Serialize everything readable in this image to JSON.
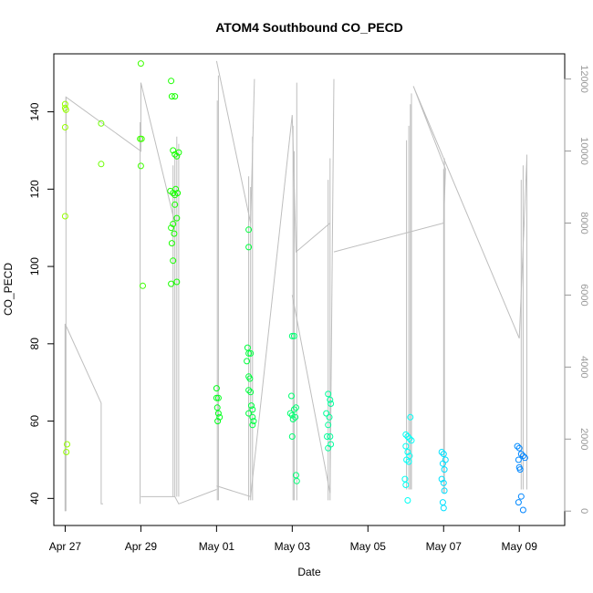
{
  "chart_data": {
    "type": "scatter",
    "title": "ATOM4 Southbound CO_PECD",
    "xlabel": "Date",
    "ylabel": "CO_PECD",
    "xlim": [
      -0.3,
      13.2
    ],
    "ylim": [
      33,
      155
    ],
    "xticks": [
      {
        "value": 0,
        "label": "Apr 27"
      },
      {
        "value": 2,
        "label": "Apr 29"
      },
      {
        "value": 4,
        "label": "May 01"
      },
      {
        "value": 6,
        "label": "May 03"
      },
      {
        "value": 8,
        "label": "May 05"
      },
      {
        "value": 10,
        "label": "May 07"
      },
      {
        "value": 12,
        "label": "May 09"
      }
    ],
    "yticks": [
      40,
      60,
      80,
      100,
      120,
      140
    ],
    "y2lim": [
      -400,
      12700
    ],
    "y2ticks": [
      0,
      2000,
      4000,
      6000,
      8000,
      10000,
      12000
    ],
    "grid": false,
    "points": [
      {
        "x": 0.0,
        "y": 142.0
      },
      {
        "x": 0.0,
        "y": 141.0
      },
      {
        "x": 0.02,
        "y": 140.5
      },
      {
        "x": 0.0,
        "y": 136.0
      },
      {
        "x": 0.0,
        "y": 113.0
      },
      {
        "x": 0.05,
        "y": 54.0
      },
      {
        "x": 0.03,
        "y": 52.0
      },
      {
        "x": 0.95,
        "y": 137.0
      },
      {
        "x": 0.95,
        "y": 126.5
      },
      {
        "x": 2.0,
        "y": 152.5
      },
      {
        "x": 1.98,
        "y": 133.0
      },
      {
        "x": 2.02,
        "y": 133.0
      },
      {
        "x": 2.0,
        "y": 126.0
      },
      {
        "x": 2.05,
        "y": 95.0
      },
      {
        "x": 2.8,
        "y": 148.0
      },
      {
        "x": 2.82,
        "y": 144.0
      },
      {
        "x": 2.9,
        "y": 144.0
      },
      {
        "x": 2.85,
        "y": 130.0
      },
      {
        "x": 2.9,
        "y": 129.0
      },
      {
        "x": 2.95,
        "y": 128.5
      },
      {
        "x": 3.0,
        "y": 129.5
      },
      {
        "x": 2.78,
        "y": 119.5
      },
      {
        "x": 2.85,
        "y": 119.0
      },
      {
        "x": 2.9,
        "y": 118.5
      },
      {
        "x": 2.92,
        "y": 120.0
      },
      {
        "x": 2.97,
        "y": 119.0
      },
      {
        "x": 2.9,
        "y": 116.0
      },
      {
        "x": 2.95,
        "y": 112.5
      },
      {
        "x": 2.85,
        "y": 111.0
      },
      {
        "x": 2.8,
        "y": 110.0
      },
      {
        "x": 2.88,
        "y": 108.5
      },
      {
        "x": 2.82,
        "y": 106.0
      },
      {
        "x": 2.85,
        "y": 101.5
      },
      {
        "x": 2.8,
        "y": 95.5
      },
      {
        "x": 2.95,
        "y": 96.0
      },
      {
        "x": 4.0,
        "y": 68.5
      },
      {
        "x": 4.0,
        "y": 66.0
      },
      {
        "x": 4.05,
        "y": 66.0
      },
      {
        "x": 4.02,
        "y": 63.5
      },
      {
        "x": 4.05,
        "y": 62.0
      },
      {
        "x": 4.08,
        "y": 61.0
      },
      {
        "x": 4.03,
        "y": 60.0
      },
      {
        "x": 4.85,
        "y": 109.5
      },
      {
        "x": 4.85,
        "y": 105.0
      },
      {
        "x": 4.82,
        "y": 79.0
      },
      {
        "x": 4.85,
        "y": 77.5
      },
      {
        "x": 4.9,
        "y": 77.5
      },
      {
        "x": 4.8,
        "y": 75.5
      },
      {
        "x": 4.85,
        "y": 71.5
      },
      {
        "x": 4.88,
        "y": 71.0
      },
      {
        "x": 4.85,
        "y": 68.0
      },
      {
        "x": 4.9,
        "y": 67.5
      },
      {
        "x": 4.92,
        "y": 64.0
      },
      {
        "x": 4.95,
        "y": 63.0
      },
      {
        "x": 4.85,
        "y": 62.0
      },
      {
        "x": 4.95,
        "y": 61.0
      },
      {
        "x": 4.98,
        "y": 60.0
      },
      {
        "x": 4.95,
        "y": 59.0
      },
      {
        "x": 6.0,
        "y": 82.0
      },
      {
        "x": 6.05,
        "y": 82.0
      },
      {
        "x": 5.98,
        "y": 66.5
      },
      {
        "x": 6.1,
        "y": 63.5
      },
      {
        "x": 6.05,
        "y": 63.0
      },
      {
        "x": 5.95,
        "y": 62.0
      },
      {
        "x": 6.0,
        "y": 61.5
      },
      {
        "x": 6.08,
        "y": 61.0
      },
      {
        "x": 6.02,
        "y": 60.5
      },
      {
        "x": 6.0,
        "y": 56.0
      },
      {
        "x": 6.1,
        "y": 46.0
      },
      {
        "x": 6.12,
        "y": 44.5
      },
      {
        "x": 6.95,
        "y": 67.0
      },
      {
        "x": 7.0,
        "y": 65.5
      },
      {
        "x": 7.02,
        "y": 64.5
      },
      {
        "x": 6.9,
        "y": 62.0
      },
      {
        "x": 6.98,
        "y": 61.0
      },
      {
        "x": 6.95,
        "y": 59.0
      },
      {
        "x": 6.92,
        "y": 56.0
      },
      {
        "x": 7.0,
        "y": 56.0
      },
      {
        "x": 7.02,
        "y": 54.0
      },
      {
        "x": 6.95,
        "y": 53.0
      },
      {
        "x": 9.0,
        "y": 56.5
      },
      {
        "x": 9.05,
        "y": 56.0
      },
      {
        "x": 9.1,
        "y": 55.5
      },
      {
        "x": 9.15,
        "y": 55.0
      },
      {
        "x": 9.0,
        "y": 53.5
      },
      {
        "x": 9.05,
        "y": 52.0
      },
      {
        "x": 9.1,
        "y": 51.0
      },
      {
        "x": 9.02,
        "y": 50.0
      },
      {
        "x": 9.08,
        "y": 49.5
      },
      {
        "x": 9.12,
        "y": 61.0
      },
      {
        "x": 8.98,
        "y": 45.0
      },
      {
        "x": 9.0,
        "y": 43.5
      },
      {
        "x": 9.05,
        "y": 39.5
      },
      {
        "x": 9.95,
        "y": 52.0
      },
      {
        "x": 10.0,
        "y": 51.5
      },
      {
        "x": 10.05,
        "y": 50.0
      },
      {
        "x": 9.98,
        "y": 49.0
      },
      {
        "x": 10.02,
        "y": 47.5
      },
      {
        "x": 9.95,
        "y": 45.0
      },
      {
        "x": 10.0,
        "y": 44.0
      },
      {
        "x": 10.02,
        "y": 42.0
      },
      {
        "x": 9.98,
        "y": 39.0
      },
      {
        "x": 10.0,
        "y": 37.5
      },
      {
        "x": 11.95,
        "y": 53.5
      },
      {
        "x": 12.0,
        "y": 53.0
      },
      {
        "x": 12.05,
        "y": 51.5
      },
      {
        "x": 12.1,
        "y": 51.0
      },
      {
        "x": 12.15,
        "y": 50.5
      },
      {
        "x": 11.98,
        "y": 50.0
      },
      {
        "x": 12.0,
        "y": 48.0
      },
      {
        "x": 12.02,
        "y": 47.5
      },
      {
        "x": 12.05,
        "y": 40.5
      },
      {
        "x": 11.98,
        "y": 39.0
      },
      {
        "x": 12.1,
        "y": 37.0
      }
    ],
    "secondary_series": {
      "name": "y2",
      "color": "#bebebe",
      "segments": [
        [
          [
            0.0,
            0
          ],
          [
            0.0,
            5200
          ],
          [
            0.95,
            3000
          ],
          [
            0.95,
            200
          ],
          [
            1.0,
            200
          ]
        ],
        [
          [
            0.02,
            10500
          ],
          [
            0.02,
            11500
          ],
          [
            2.0,
            10000
          ],
          [
            2.0,
            11900
          ],
          [
            2.9,
            8000
          ]
        ],
        [
          [
            2.0,
            400
          ],
          [
            2.9,
            400
          ],
          [
            3.0,
            200
          ],
          [
            4.0,
            600
          ]
        ],
        [
          [
            4.0,
            12500
          ],
          [
            4.9,
            8000
          ],
          [
            5.0,
            12000
          ]
        ],
        [
          [
            4.0,
            700
          ],
          [
            4.9,
            400
          ],
          [
            6.0,
            11000
          ],
          [
            6.1,
            7200
          ],
          [
            7.0,
            8000
          ]
        ],
        [
          [
            6.0,
            6000
          ],
          [
            7.0,
            500
          ],
          [
            7.1,
            12000
          ]
        ],
        [
          [
            7.1,
            7200
          ],
          [
            10.0,
            8000
          ],
          [
            10.05,
            9500
          ],
          [
            9.2,
            11800
          ],
          [
            12.0,
            4800
          ],
          [
            12.2,
            9800
          ]
        ]
      ],
      "spikes": [
        [
          0.0,
          0,
          5200
        ],
        [
          0.02,
          0,
          11500
        ],
        [
          1.98,
          200,
          10800
        ],
        [
          2.85,
          400,
          9600
        ],
        [
          2.9,
          400,
          9900
        ],
        [
          2.95,
          400,
          10400
        ],
        [
          3.0,
          400,
          10200
        ],
        [
          4.02,
          300,
          11400
        ],
        [
          4.05,
          300,
          12100
        ],
        [
          4.85,
          300,
          9300
        ],
        [
          4.9,
          300,
          9000
        ],
        [
          4.95,
          300,
          10400
        ],
        [
          6.02,
          300,
          10700
        ],
        [
          6.05,
          300,
          10000
        ],
        [
          6.12,
          300,
          11900
        ],
        [
          6.95,
          300,
          9200
        ],
        [
          7.0,
          300,
          9800
        ],
        [
          9.02,
          600,
          10300
        ],
        [
          9.08,
          600,
          10700
        ],
        [
          9.12,
          600,
          11300
        ],
        [
          9.15,
          600,
          11600
        ],
        [
          10.0,
          500,
          9500
        ],
        [
          10.02,
          500,
          9800
        ],
        [
          12.05,
          600,
          9200
        ],
        [
          12.1,
          600,
          9600
        ],
        [
          12.2,
          600,
          9900
        ]
      ]
    }
  }
}
